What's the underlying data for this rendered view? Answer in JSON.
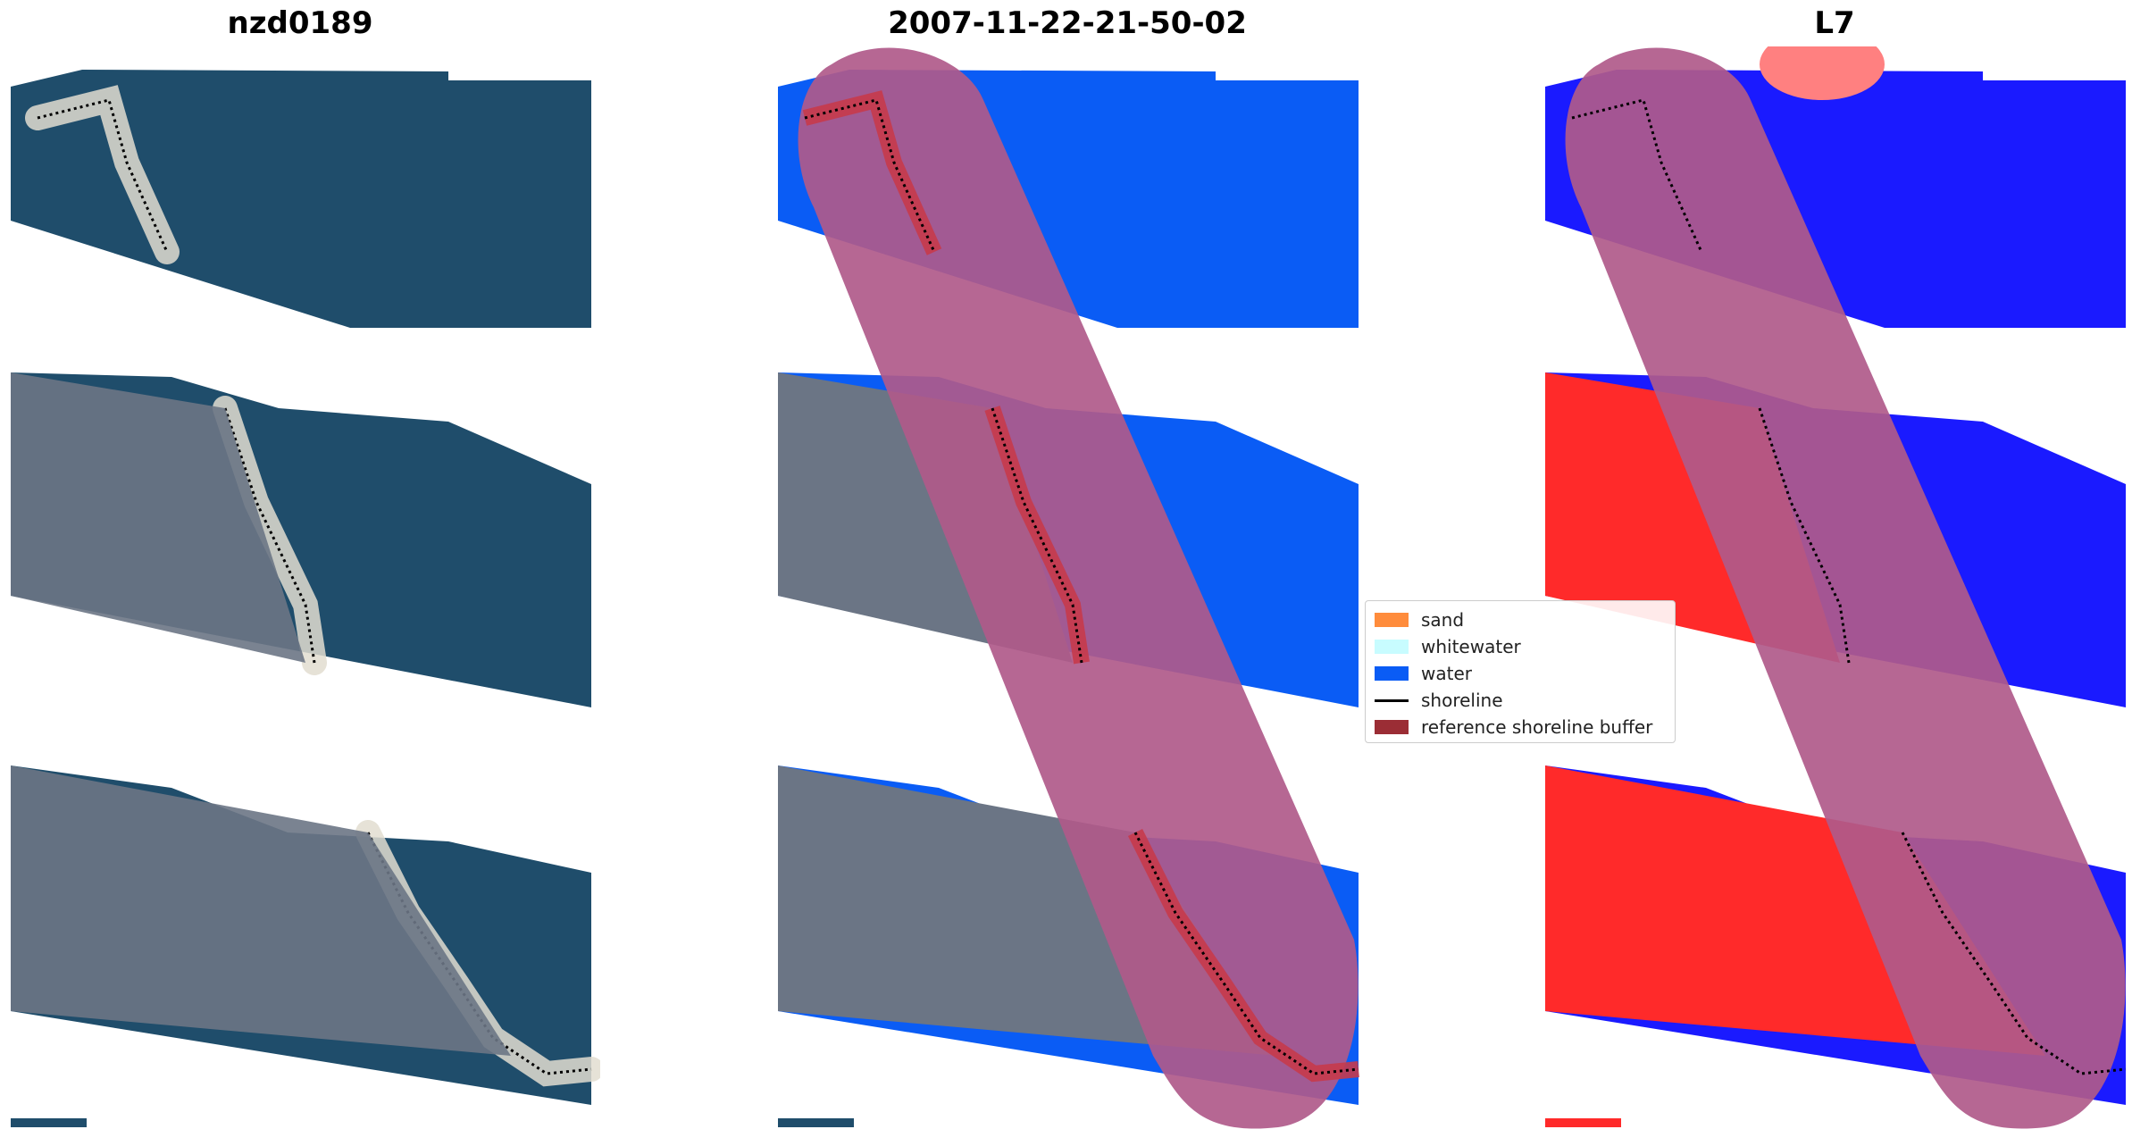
{
  "panels": [
    {
      "title": "nzd0189",
      "view": "rgb"
    },
    {
      "title": "2007-11-22-21-50-02",
      "view": "classified"
    },
    {
      "title": "L7",
      "view": "index"
    }
  ],
  "legend": {
    "placement": "center",
    "items": [
      {
        "label": "sand",
        "kind": "patch",
        "color": "#ff8c3c"
      },
      {
        "label": "whitewater",
        "kind": "patch",
        "color": "#c8fcff"
      },
      {
        "label": "water",
        "kind": "patch",
        "color": "#0a5cf5"
      },
      {
        "label": "shoreline",
        "kind": "line",
        "color": "#000000"
      },
      {
        "label": "reference shoreline buffer",
        "kind": "patch",
        "color": "#9b2d35"
      }
    ]
  },
  "colors": {
    "ocean": "#1f4d6b",
    "land": "#6b7585",
    "beach": "#e2ddd0",
    "water_class": "#0a5cf5",
    "sand_in_buffer": "#c63a4b",
    "buffer": "#b05a8a",
    "land_index": "#ff2a2a",
    "water_index": "#1a1aff"
  }
}
